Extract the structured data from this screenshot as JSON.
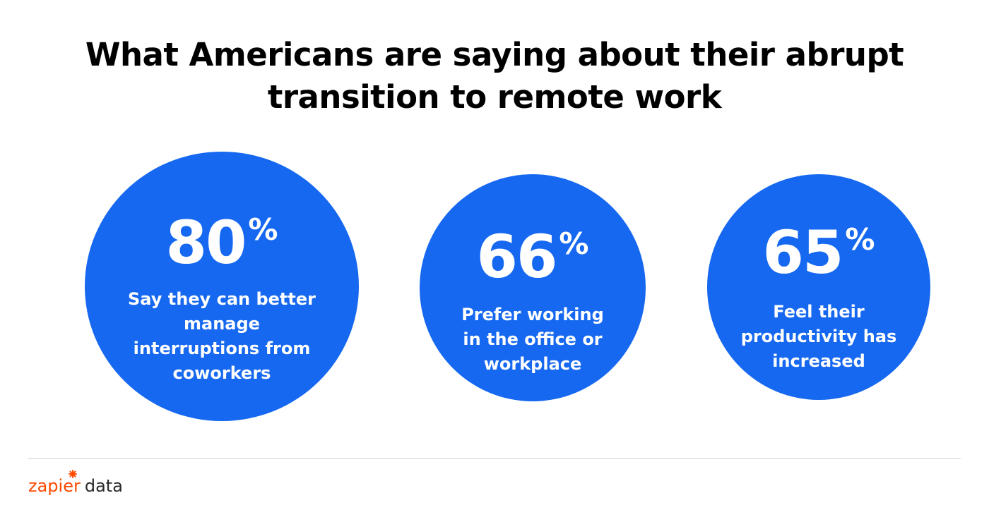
{
  "title": {
    "line1": "What Americans are saying about their abrupt",
    "line2": "transition to remote work"
  },
  "stats": [
    {
      "value": "80",
      "unit": "%",
      "lines": [
        "Say they can better",
        "manage",
        "interruptions from",
        "coworkers"
      ]
    },
    {
      "value": "66",
      "unit": "%",
      "lines": [
        "Prefer working",
        "in the office or",
        "workplace"
      ]
    },
    {
      "value": "65",
      "unit": "%",
      "lines": [
        "Feel their",
        "productivity has",
        "increased"
      ]
    }
  ],
  "brand": {
    "name": "zapier",
    "suffix": "data",
    "icon": "zapier-asterisk-icon",
    "accent_color": "#ff4a00"
  },
  "colors": {
    "circle": "#1668f0",
    "title": "#000000"
  }
}
